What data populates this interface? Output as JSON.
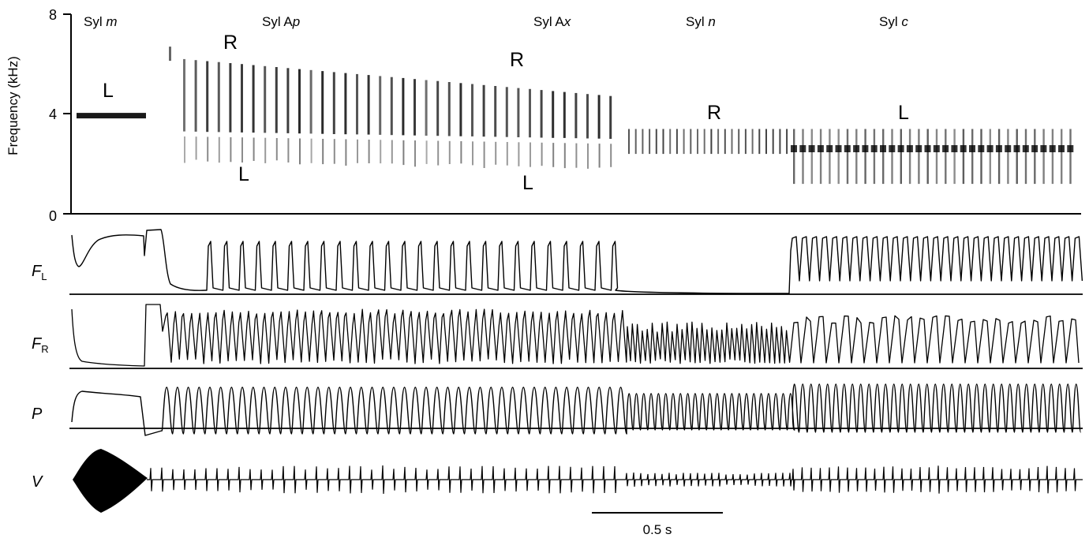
{
  "chart_data": {
    "type": "spectrogram-with-traces",
    "ylabel": "Frequency (kHz)",
    "yticks": [
      "0",
      "4",
      "8"
    ],
    "ylim": [
      0,
      8
    ],
    "syllables": [
      {
        "prefix": "Syl ",
        "suffix": "m"
      },
      {
        "prefix": "Syl A",
        "suffix": "p"
      },
      {
        "prefix": "Syl A",
        "suffix": "x"
      },
      {
        "prefix": "Syl ",
        "suffix": "n"
      },
      {
        "prefix": "Syl ",
        "suffix": "c"
      }
    ],
    "side_labels": [
      "L",
      "R",
      "L",
      "R",
      "L",
      "R",
      "L"
    ],
    "traces": [
      {
        "main": "F",
        "sub": "L"
      },
      {
        "main": "F",
        "sub": "R"
      },
      {
        "main": "P",
        "sub": ""
      },
      {
        "main": "V",
        "sub": ""
      }
    ],
    "scale_bar": {
      "label": "0.5 s",
      "seconds": 0.5
    }
  }
}
